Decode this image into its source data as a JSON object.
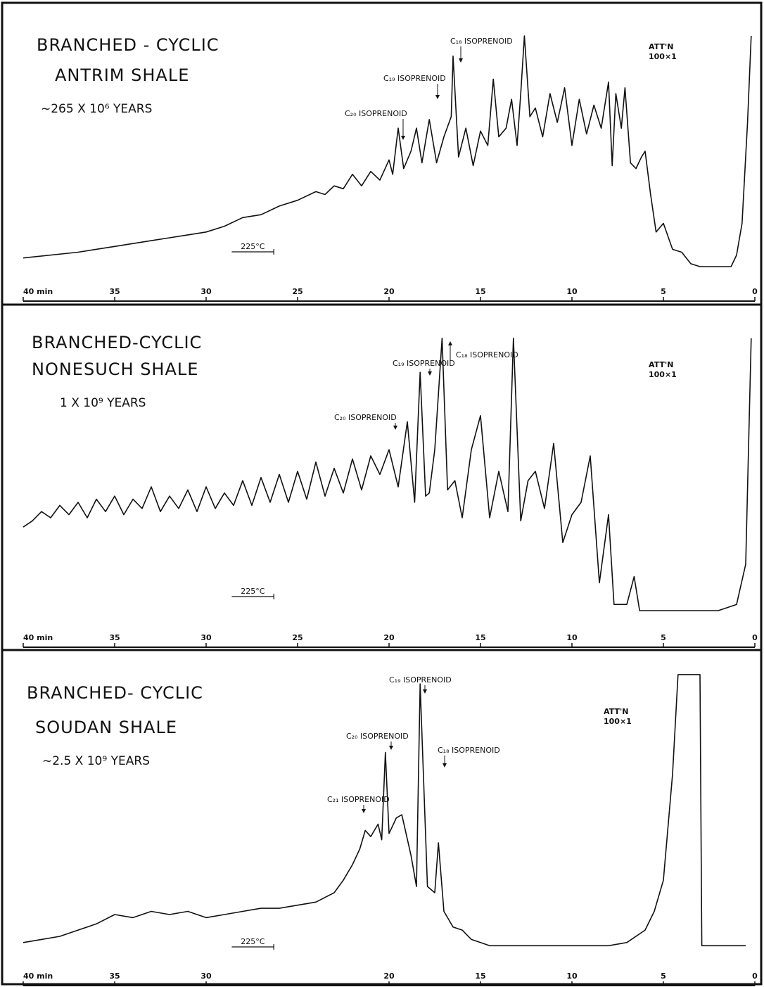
{
  "chart_data": [
    {
      "type": "line",
      "title": "BRANCHED - CYCLIC",
      "subtitle": "ANTRIM SHALE",
      "age": "~265 X 10⁶ YEARS",
      "attenuation": [
        "ATT'N",
        "100×1"
      ],
      "temperature": "225°C",
      "annotations": [
        "C₂₀ ISOPRENOID",
        "C₁₉ ISOPRENOID",
        "C₁₈ ISOPRENOID"
      ],
      "xlim": [
        40,
        0
      ],
      "ylim": [
        0,
        100
      ],
      "xticks": [
        {
          "value": 40,
          "label": "40 min"
        },
        35,
        30,
        25,
        20,
        15,
        10,
        5,
        0
      ],
      "series": [
        {
          "color": "#111111",
          "x": [
            40,
            37,
            35,
            34,
            33,
            32,
            31,
            30,
            29,
            28,
            27,
            26,
            25,
            24,
            23.5,
            23,
            22.5,
            22,
            21.5,
            21,
            20.5,
            20,
            19.8,
            19.5,
            19.2,
            18.8,
            18.5,
            18.2,
            17.8,
            17.4,
            17,
            16.6,
            16.5,
            16.2,
            15.8,
            15.4,
            15,
            14.6,
            14.3,
            14,
            13.6,
            13.3,
            13,
            12.8,
            12.6,
            12.3,
            12,
            11.6,
            11.2,
            10.8,
            10.4,
            10,
            9.6,
            9.2,
            8.8,
            8.4,
            8,
            7.8,
            7.6,
            7.3,
            7.1,
            6.8,
            6.5,
            6.2,
            6,
            5.7,
            5.4,
            5,
            4.5,
            4,
            3.5,
            3,
            2,
            1.3,
            1,
            0.7,
            0.4,
            0.2
          ],
          "values": [
            13,
            15,
            17,
            18,
            19,
            20,
            21,
            22,
            24,
            27,
            28,
            31,
            33,
            36,
            35,
            38,
            37,
            42,
            38,
            43,
            40,
            47,
            42,
            58,
            44,
            50,
            58,
            46,
            61,
            46,
            55,
            62,
            83,
            48,
            58,
            45,
            57,
            52,
            75,
            55,
            58,
            68,
            52,
            70,
            90,
            62,
            65,
            55,
            70,
            60,
            72,
            52,
            68,
            56,
            66,
            58,
            74,
            45,
            70,
            58,
            72,
            46,
            44,
            48,
            50,
            35,
            22,
            25,
            16,
            15,
            11,
            10,
            10,
            10,
            14,
            25,
            60,
            90
          ]
        }
      ]
    },
    {
      "type": "line",
      "title": "BRANCHED-CYCLIC",
      "subtitle": "NONESUCH SHALE",
      "age": "1 X 10⁹ YEARS",
      "attenuation": [
        "ATT'N",
        "100×1"
      ],
      "temperature": "225°C",
      "annotations": [
        "C₁₉ ISOPRENOID",
        "C₁₈ ISOPRENOID",
        "C₂₀ ISOPRENOID"
      ],
      "xlim": [
        40,
        0
      ],
      "ylim": [
        0,
        100
      ],
      "xticks": [
        {
          "value": 40,
          "label": "40 min"
        },
        35,
        30,
        25,
        20,
        15,
        10,
        5,
        0
      ],
      "series": [
        {
          "color": "#111111",
          "x": [
            40,
            39.5,
            39,
            38.5,
            38,
            37.5,
            37,
            36.5,
            36,
            35.5,
            35,
            34.5,
            34,
            33.5,
            33,
            32.5,
            32,
            31.5,
            31,
            30.5,
            30,
            29.5,
            29,
            28.5,
            28,
            27.5,
            27,
            26.5,
            26,
            25.5,
            25,
            24.5,
            24,
            23.5,
            23,
            22.5,
            22,
            21.5,
            21,
            20.5,
            20,
            19.5,
            19,
            18.6,
            18.3,
            18,
            17.8,
            17.5,
            17.1,
            16.8,
            16.4,
            16,
            15.5,
            15,
            14.5,
            14,
            13.5,
            13.2,
            12.8,
            12.4,
            12,
            11.5,
            11,
            10.5,
            10,
            9.5,
            9,
            8.5,
            8,
            7.7,
            7,
            6.6,
            6.3,
            5,
            2,
            1,
            0.5,
            0.2
          ],
          "values": [
            37,
            39,
            42,
            40,
            44,
            41,
            45,
            40,
            46,
            42,
            47,
            41,
            46,
            43,
            50,
            42,
            47,
            43,
            49,
            42,
            50,
            43,
            48,
            44,
            52,
            44,
            53,
            45,
            54,
            45,
            55,
            46,
            58,
            47,
            56,
            48,
            59,
            49,
            60,
            54,
            62,
            50,
            71,
            45,
            87,
            47,
            48,
            62,
            98,
            49,
            52,
            40,
            62,
            73,
            40,
            55,
            42,
            98,
            39,
            52,
            55,
            43,
            64,
            32,
            41,
            45,
            60,
            19,
            41,
            12,
            12,
            21,
            10,
            10,
            10,
            12,
            25,
            98
          ]
        }
      ]
    },
    {
      "type": "line",
      "title": "BRANCHED- CYCLIC",
      "subtitle": "SOUDAN SHALE",
      "age": "~2.5 X 10⁹ YEARS",
      "attenuation": [
        "ATT'N",
        "100×1"
      ],
      "temperature": "225°C",
      "annotations": [
        "C₁₉ ISOPRENOID",
        "C₂₀ ISOPRENOID",
        "C₂₁ ISOPRENOID",
        "C₁₈ ISOPRENOID"
      ],
      "xlim": [
        40,
        0
      ],
      "ylim": [
        0,
        100
      ],
      "xticks": [
        {
          "value": 40,
          "label": "40 min"
        },
        35,
        30,
        20,
        15,
        10,
        5,
        0
      ],
      "series": [
        {
          "color": "#111111",
          "x": [
            40,
            39,
            38,
            37,
            36,
            35,
            34,
            33,
            32,
            31,
            30,
            29,
            28,
            27,
            26,
            25,
            24,
            23,
            22.5,
            22,
            21.6,
            21.3,
            21,
            20.6,
            20.4,
            20.2,
            20,
            19.6,
            19.3,
            18.8,
            18.5,
            18.3,
            17.9,
            17.5,
            17.3,
            17,
            16.5,
            16,
            15.5,
            15,
            14.5,
            12,
            10,
            8,
            7,
            6,
            5.5,
            5,
            4.5,
            4.2,
            3,
            2.9,
            2,
            1,
            0.5
          ],
          "values": [
            12,
            13,
            14,
            16,
            18,
            21,
            20,
            22,
            21,
            22,
            20,
            21,
            22,
            23,
            23,
            24,
            25,
            28,
            32,
            37,
            42,
            48,
            46,
            50,
            45,
            73,
            47,
            52,
            53,
            40,
            30,
            95,
            30,
            28,
            44,
            22,
            17,
            16,
            13,
            12,
            11,
            11,
            11,
            11,
            12,
            16,
            22,
            32,
            66,
            98,
            98,
            11,
            11,
            11,
            11
          ]
        }
      ]
    }
  ]
}
